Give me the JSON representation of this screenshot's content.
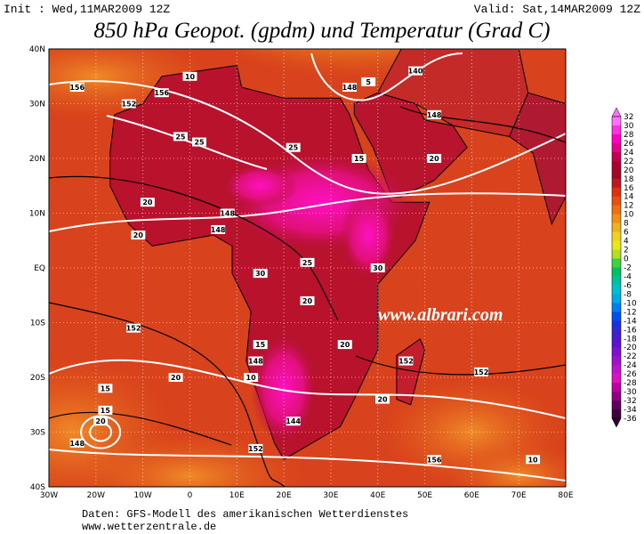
{
  "header": {
    "init": "Init : Wed,11MAR2009 12Z",
    "valid": "Valid: Sat,14MAR2009 12Z",
    "title": "850 hPa Geopot. (gpdm) und Temperatur (Grad C)"
  },
  "map": {
    "lat_labels": [
      "40N",
      "30N",
      "20N",
      "10N",
      "EQ",
      "10S",
      "20S",
      "30S",
      "40S"
    ],
    "lon_labels": [
      "30W",
      "20W",
      "10W",
      "0",
      "10E",
      "20E",
      "30E",
      "40E",
      "50E",
      "60E",
      "70E",
      "80E"
    ],
    "contour_labels": [
      "156",
      "156",
      "10",
      "152",
      "25",
      "25",
      "20",
      "148",
      "25",
      "20",
      "148",
      "30",
      "25",
      "30",
      "20",
      "148",
      "20",
      "15",
      "152",
      "15",
      "20",
      "148",
      "144",
      "10",
      "152",
      "20",
      "15",
      "156",
      "152",
      "20",
      "20",
      "15",
      "5",
      "148",
      "140",
      "148",
      "152",
      "10"
    ],
    "watermark": "www.albrari.com"
  },
  "colorbar": {
    "labels": [
      "32",
      "30",
      "28",
      "26",
      "24",
      "22",
      "20",
      "18",
      "16",
      "14",
      "12",
      "10",
      "8",
      "6",
      "4",
      "2",
      "0",
      "-2",
      "-4",
      "-6",
      "-8",
      "-10",
      "-12",
      "-14",
      "-16",
      "-18",
      "-20",
      "-22",
      "-24",
      "-26",
      "-28",
      "-30",
      "-32",
      "-34",
      "-36"
    ]
  },
  "footer": {
    "source": "Daten: GFS-Modell des amerikanischen Wetterdienstes",
    "url": "www.wetterzentrale.de"
  }
}
